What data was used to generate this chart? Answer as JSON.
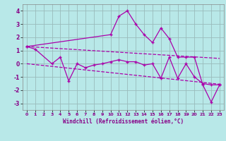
{
  "xlabel": "Windchill (Refroidissement éolien,°C)",
  "background_color": "#b8e8e8",
  "line_color": "#aa00aa",
  "grid_color": "#99bbbb",
  "xlim": [
    -0.5,
    23.5
  ],
  "ylim": [
    -3.5,
    4.5
  ],
  "yticks": [
    -3,
    -2,
    -1,
    0,
    1,
    2,
    3,
    4
  ],
  "xticks": [
    0,
    1,
    2,
    3,
    4,
    5,
    6,
    7,
    8,
    9,
    10,
    11,
    12,
    13,
    14,
    15,
    16,
    17,
    18,
    19,
    20,
    21,
    22,
    23
  ],
  "series1_x": [
    0,
    1,
    3,
    4,
    5,
    6,
    7,
    8,
    9,
    10,
    11,
    12,
    13,
    14,
    15,
    16,
    17,
    18,
    19,
    20,
    21,
    22,
    23
  ],
  "series1_y": [
    1.3,
    1.1,
    0.0,
    0.5,
    -1.3,
    0.0,
    -0.3,
    -0.1,
    0.0,
    0.15,
    0.3,
    0.15,
    0.15,
    -0.1,
    0.0,
    -1.1,
    0.5,
    -1.1,
    0.0,
    -1.0,
    -1.5,
    -1.6,
    -1.6
  ],
  "series2_x": [
    0,
    10,
    11,
    12,
    13,
    14,
    15,
    16,
    17,
    18,
    19,
    20,
    21,
    22,
    23
  ],
  "series2_y": [
    1.3,
    2.2,
    3.6,
    4.0,
    3.0,
    2.2,
    1.6,
    2.7,
    1.9,
    0.5,
    0.5,
    0.5,
    -1.6,
    -2.9,
    -1.6
  ],
  "trend1_x": [
    0,
    23
  ],
  "trend1_y": [
    1.3,
    0.4
  ],
  "trend2_x": [
    0,
    23
  ],
  "trend2_y": [
    0.0,
    -1.55
  ]
}
